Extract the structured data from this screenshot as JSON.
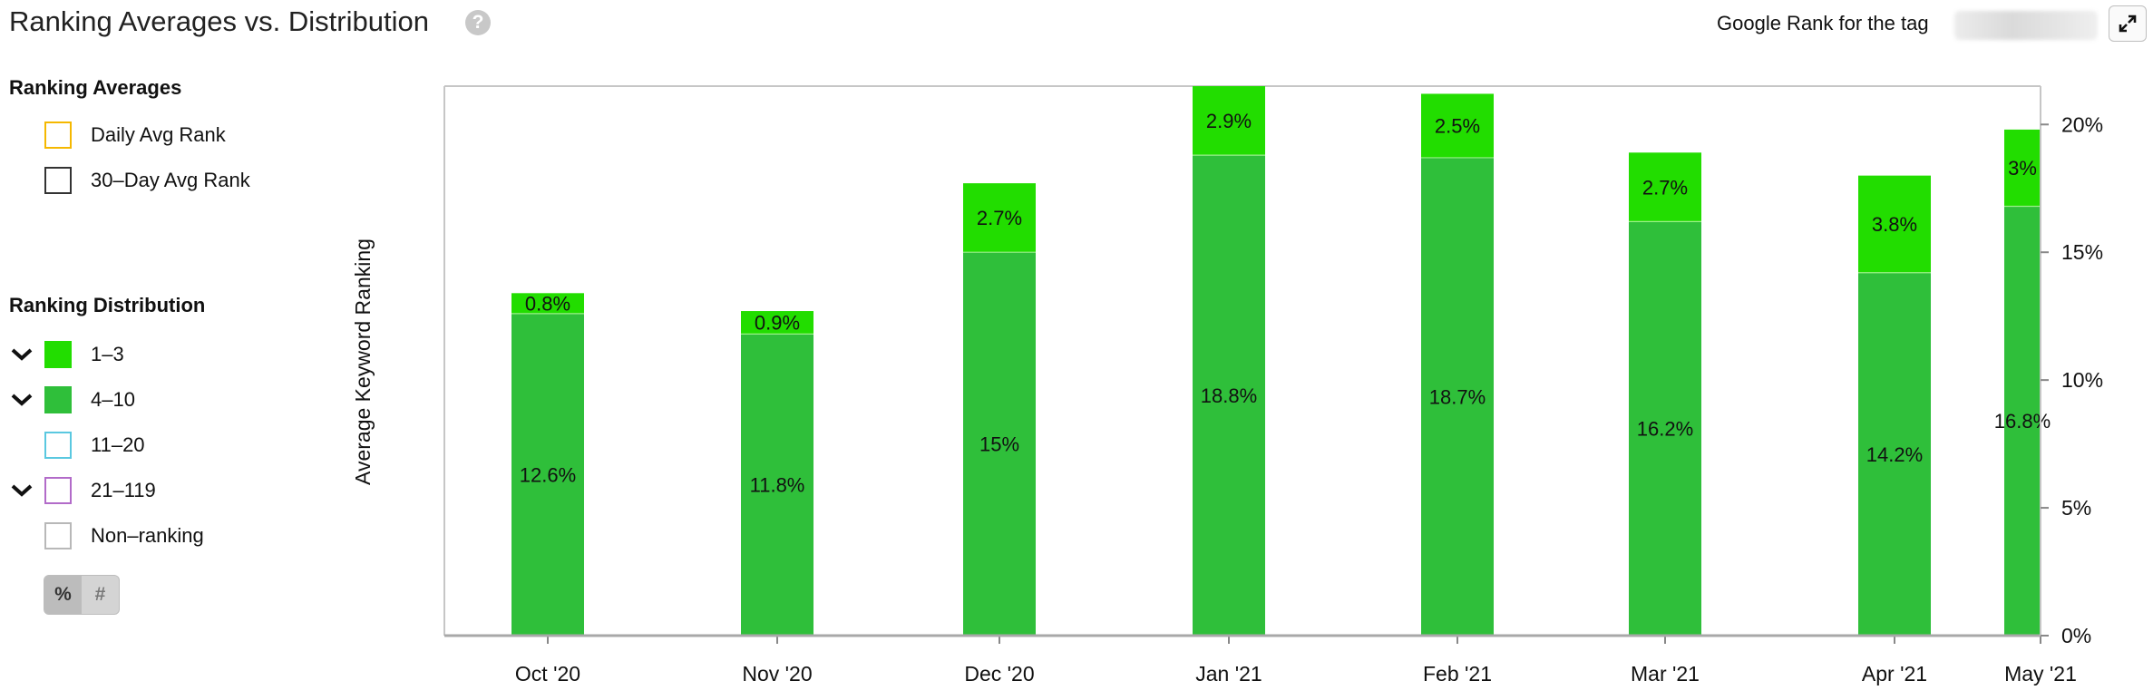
{
  "header": {
    "title": "Ranking Averages vs. Distribution",
    "help_icon": "question-circle-icon",
    "tag_label": "Google Rank for the tag",
    "expand_icon": "expand-arrows-icon"
  },
  "legend": {
    "averages_heading": "Ranking Averages",
    "averages": [
      {
        "label": "Daily Avg Rank",
        "color": "#f5b800"
      },
      {
        "label": "30–Day Avg Rank",
        "color": "#333333"
      }
    ],
    "distribution_heading": "Ranking Distribution",
    "distribution": [
      {
        "label": "1–3",
        "color": "#22dd00",
        "filled": true,
        "chevron": true
      },
      {
        "label": "4–10",
        "color": "#2fbf3a",
        "filled": true,
        "chevron": true
      },
      {
        "label": "11–20",
        "color": "#5ac8e0",
        "filled": false,
        "chevron": false
      },
      {
        "label": "21–119",
        "color": "#b26bc9",
        "filled": false,
        "chevron": true
      },
      {
        "label": "Non–ranking",
        "color": "#b8b8b8",
        "filled": false,
        "chevron": false
      }
    ],
    "toggle": {
      "percent_label": "%",
      "count_label": "#",
      "selected": "%"
    }
  },
  "chart_data": {
    "type": "bar",
    "stacked": true,
    "ylabel": "Average Keyword Ranking",
    "y_axis_side": "right",
    "ylim": [
      0,
      21.5
    ],
    "yticks": [
      "0%",
      "5%",
      "10%",
      "15%",
      "20%"
    ],
    "ytick_values": [
      0,
      5,
      10,
      15,
      20
    ],
    "grid": false,
    "categories": [
      "Oct '20",
      "Nov '20",
      "Dec '20",
      "Jan '21",
      "Feb '21",
      "Mar '21",
      "Apr '21",
      "May '21"
    ],
    "series": [
      {
        "name": "4–10",
        "color": "#2fbf3a",
        "values": [
          12.6,
          11.8,
          15,
          18.8,
          18.7,
          16.2,
          14.2,
          16.8
        ],
        "labels": [
          "12.6%",
          "11.8%",
          "15%",
          "18.8%",
          "18.7%",
          "16.2%",
          "14.2%",
          "16.8%"
        ]
      },
      {
        "name": "1–3",
        "color": "#22dd00",
        "values": [
          0.8,
          0.9,
          2.7,
          2.9,
          2.5,
          2.7,
          3.8,
          3
        ],
        "labels": [
          "0.8%",
          "0.9%",
          "2.7%",
          "2.9%",
          "2.5%",
          "2.7%",
          "3.8%",
          "3%"
        ]
      }
    ]
  }
}
